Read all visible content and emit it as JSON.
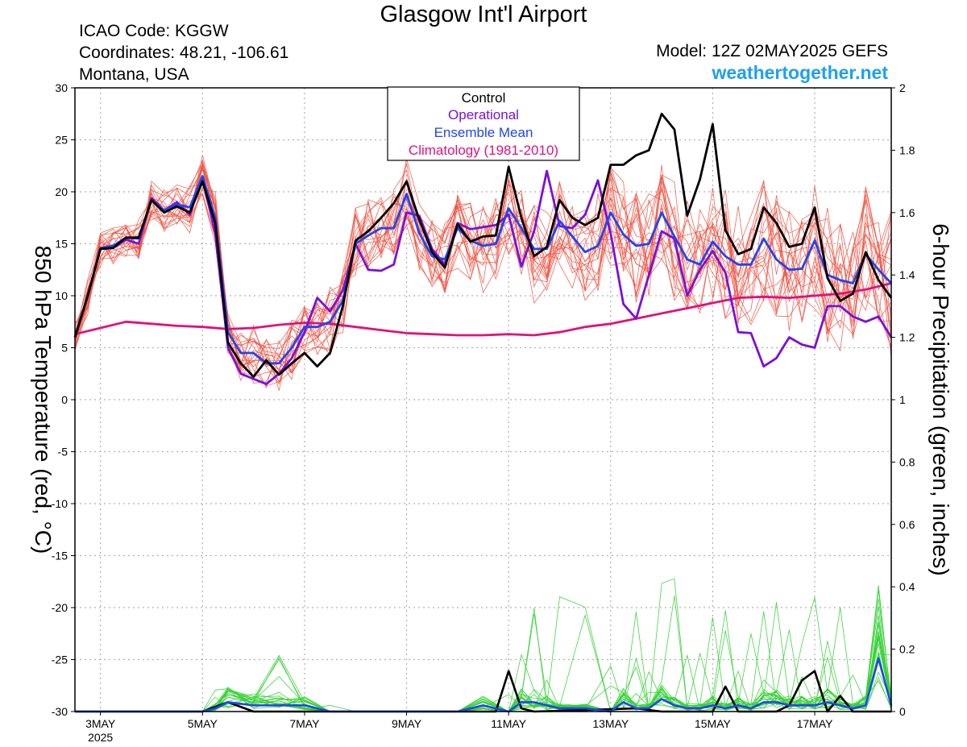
{
  "header": {
    "title": "Glasgow Int'l Airport",
    "icao": "ICAO Code: KGGW",
    "coords": "Coordinates: 48.21, -106.61",
    "location": "Montana, USA",
    "model": "Model: 12Z 02MAY2025 GEFS",
    "site": "weathertogether.net"
  },
  "colors": {
    "control": "#000000",
    "operational": "#7a10d8",
    "mean": "#2045f0",
    "climatology": "#e0127a",
    "members": "#f05040",
    "precip": "#30d030",
    "site": "#1ea0ee"
  },
  "chart_data": {
    "type": "line",
    "title": "Glasgow Int'l Airport",
    "ylabel": "850 hPa Temperature (red, °C)",
    "y2label": "6-hour Precipitation (green, inches)",
    "ylim": [
      -30,
      30
    ],
    "y2lim": [
      0,
      2
    ],
    "yticks": [
      -30,
      -25,
      -20,
      -15,
      -10,
      -5,
      0,
      5,
      10,
      15,
      20,
      25,
      30
    ],
    "y2ticks": [
      0,
      0.2,
      0.4,
      0.6,
      0.8,
      1,
      1.2,
      1.4,
      1.6,
      1.8,
      2
    ],
    "xticks": [
      {
        "day": 3,
        "label": "3MAY",
        "sub": "2025"
      },
      {
        "day": 5,
        "label": "5MAY"
      },
      {
        "day": 7,
        "label": "7MAY"
      },
      {
        "day": 9,
        "label": "9MAY"
      },
      {
        "day": 11,
        "label": "11MAY"
      },
      {
        "day": 13,
        "label": "13MAY"
      },
      {
        "day": 15,
        "label": "15MAY"
      },
      {
        "day": 17,
        "label": "17MAY"
      }
    ],
    "xlim": [
      2.5,
      18.5
    ],
    "grid": true,
    "legend": {
      "position": "top-center",
      "entries": [
        {
          "label": "Control",
          "color": "#000000"
        },
        {
          "label": "Operational",
          "color": "#7a10d8"
        },
        {
          "label": "Ensemble Mean",
          "color": "#2045f0"
        },
        {
          "label": "Climatology (1981-2010)",
          "color": "#e0127a"
        }
      ]
    },
    "series": [
      {
        "name": "Control",
        "axis": "temperature",
        "x": [
          2.5,
          2.75,
          3.0,
          3.25,
          3.5,
          3.75,
          4.0,
          4.25,
          4.5,
          4.75,
          5.0,
          5.25,
          5.5,
          5.75,
          6.0,
          6.25,
          6.5,
          6.75,
          7.0,
          7.25,
          7.5,
          7.75,
          8.0,
          8.25,
          8.5,
          8.75,
          9.0,
          9.25,
          9.5,
          9.75,
          10.0,
          10.25,
          10.5,
          10.75,
          11.0,
          11.25,
          11.5,
          11.75,
          12.0,
          12.25,
          12.5,
          12.75,
          13.0,
          13.25,
          13.5,
          13.75,
          14.0,
          14.25,
          14.5,
          14.75,
          15.0,
          15.25,
          15.5,
          15.75,
          16.0,
          16.25,
          16.5,
          16.75,
          17.0,
          17.25,
          17.5,
          17.75,
          18.0,
          18.25,
          18.5
        ],
        "y": [
          6.0,
          10.0,
          14.5,
          14.6,
          15.6,
          15.6,
          19.2,
          18.0,
          18.6,
          18.0,
          21.0,
          17.0,
          5.5,
          3.5,
          2.2,
          3.8,
          2.4,
          3.5,
          4.5,
          3.2,
          4.5,
          9.0,
          15.3,
          16.2,
          17.5,
          18.9,
          21.0,
          17.3,
          14.2,
          12.7,
          16.9,
          15.2,
          15.7,
          15.8,
          22.4,
          17.5,
          13.8,
          14.7,
          19.2,
          17.5,
          16.8,
          17.5,
          22.6,
          22.6,
          23.5,
          24.0,
          27.5,
          26.0,
          17.7,
          21.2,
          26.5,
          16.3,
          14.0,
          14.5,
          18.5,
          17.0,
          14.7,
          15.0,
          18.5,
          11.7,
          9.5,
          10.2,
          14.2,
          11.5,
          9.8
        ]
      },
      {
        "name": "Operational",
        "axis": "temperature",
        "x": [
          2.5,
          2.75,
          3.0,
          3.25,
          3.5,
          3.75,
          4.0,
          4.25,
          4.5,
          4.75,
          5.0,
          5.25,
          5.5,
          5.75,
          6.0,
          6.25,
          6.5,
          6.75,
          7.0,
          7.25,
          7.5,
          7.75,
          8.0,
          8.25,
          8.5,
          8.75,
          9.0,
          9.25,
          9.5,
          9.75,
          10.0,
          10.25,
          10.5,
          10.75,
          11.0,
          11.25,
          11.5,
          11.75,
          12.0,
          12.25,
          12.5,
          12.75,
          13.0,
          13.25,
          13.5,
          13.75,
          14.0,
          14.25,
          14.5,
          14.75,
          15.0,
          15.25,
          15.5,
          15.75,
          16.0,
          16.25,
          16.5,
          16.75,
          17.0,
          17.25,
          17.5,
          17.75,
          18.0,
          18.25,
          18.5
        ],
        "y": [
          6.0,
          10.0,
          14.5,
          14.6,
          15.4,
          15.0,
          19.4,
          18.2,
          19.0,
          17.8,
          21.3,
          16.0,
          5.0,
          2.5,
          2.0,
          1.5,
          2.5,
          4.0,
          6.5,
          9.8,
          8.5,
          10.5,
          15.0,
          12.5,
          12.4,
          13.0,
          18.0,
          17.7,
          14.5,
          13.0,
          17.0,
          16.4,
          16.6,
          16.8,
          17.8,
          12.8,
          16.2,
          22.0,
          16.7,
          16.5,
          17.8,
          21.1,
          16.0,
          9.2,
          7.8,
          12.0,
          16.2,
          15.5,
          10.0,
          12.5,
          14.3,
          12.2,
          6.5,
          6.4,
          3.2,
          4.0,
          6.0,
          5.3,
          5.0,
          9.0,
          9.0,
          8.0,
          7.5,
          8.0,
          6.0
        ]
      },
      {
        "name": "Ensemble Mean",
        "axis": "temperature",
        "x": [
          2.5,
          2.75,
          3.0,
          3.25,
          3.5,
          3.75,
          4.0,
          4.25,
          4.5,
          4.75,
          5.0,
          5.25,
          5.5,
          5.75,
          6.0,
          6.25,
          6.5,
          6.75,
          7.0,
          7.25,
          7.5,
          7.75,
          8.0,
          8.25,
          8.5,
          8.75,
          9.0,
          9.25,
          9.5,
          9.75,
          10.0,
          10.25,
          10.5,
          10.75,
          11.0,
          11.25,
          11.5,
          11.75,
          12.0,
          12.25,
          12.5,
          12.75,
          13.0,
          13.25,
          13.5,
          13.75,
          14.0,
          14.25,
          14.5,
          14.75,
          15.0,
          15.25,
          15.5,
          15.75,
          16.0,
          16.25,
          16.5,
          16.75,
          17.0,
          17.25,
          17.5,
          17.75,
          18.0,
          18.25,
          18.5
        ],
        "y": [
          6.0,
          10.0,
          14.6,
          14.8,
          15.6,
          15.5,
          19.2,
          18.2,
          18.8,
          18.5,
          21.5,
          17.5,
          6.5,
          4.5,
          4.5,
          3.5,
          3.5,
          5.0,
          7.0,
          7.0,
          7.5,
          9.5,
          15.0,
          15.8,
          16.5,
          16.5,
          19.8,
          16.0,
          13.8,
          13.5,
          16.5,
          15.3,
          14.8,
          15.0,
          18.4,
          16.5,
          14.5,
          14.5,
          17.2,
          15.7,
          14.2,
          14.8,
          18.0,
          15.9,
          14.8,
          15.0,
          18.0,
          15.7,
          13.5,
          13.0,
          15.2,
          13.8,
          13.0,
          13.0,
          15.5,
          13.5,
          12.5,
          12.6,
          15.3,
          12.0,
          11.5,
          11.2,
          14.0,
          12.5,
          11.2
        ]
      },
      {
        "name": "Climatology (1981-2010)",
        "axis": "temperature",
        "x": [
          2.5,
          3.0,
          3.5,
          4.0,
          4.5,
          5.0,
          5.5,
          6.0,
          6.5,
          7.0,
          7.5,
          8.0,
          8.5,
          9.0,
          9.5,
          10.0,
          10.5,
          11.0,
          11.5,
          12.0,
          12.5,
          13.0,
          13.5,
          14.0,
          14.5,
          15.0,
          15.5,
          16.0,
          16.5,
          17.0,
          17.5,
          18.0,
          18.5
        ],
        "y": [
          6.3,
          6.9,
          7.5,
          7.3,
          7.1,
          7.0,
          6.8,
          6.9,
          7.2,
          7.4,
          7.3,
          7.0,
          6.7,
          6.4,
          6.3,
          6.2,
          6.2,
          6.3,
          6.2,
          6.5,
          7.0,
          7.3,
          7.8,
          8.3,
          8.8,
          9.3,
          9.8,
          9.9,
          9.8,
          10.0,
          10.2,
          10.6,
          11.2
        ]
      },
      {
        "name": "Control precip",
        "axis": "precip",
        "x": [
          2.5,
          5.0,
          5.5,
          6.0,
          6.5,
          7.0,
          7.5,
          8.0,
          10.75,
          11.0,
          11.25,
          11.5,
          13.5,
          14.0,
          15.0,
          15.25,
          15.5,
          16.0,
          16.25,
          16.5,
          16.75,
          17.0,
          17.25,
          17.5,
          17.75,
          18.0,
          18.5
        ],
        "y": [
          0,
          0,
          0.03,
          0.0,
          0.0,
          0.0,
          0.0,
          0,
          0,
          0.13,
          0.01,
          0,
          0.01,
          0,
          0,
          0.08,
          0,
          0,
          0.0,
          0.02,
          0.1,
          0.13,
          0.0,
          0.05,
          0,
          0,
          0
        ]
      },
      {
        "name": "Mean precip",
        "axis": "precip",
        "x": [
          2.5,
          5.0,
          5.25,
          5.5,
          6.0,
          6.5,
          7.0,
          7.5,
          8.0,
          9.0,
          10.0,
          10.5,
          11.0,
          11.25,
          11.5,
          11.75,
          12.0,
          12.5,
          13.0,
          13.25,
          13.5,
          13.75,
          14.0,
          14.25,
          14.5,
          14.75,
          15.0,
          15.25,
          15.5,
          15.75,
          16.0,
          16.25,
          16.5,
          16.75,
          17.0,
          17.25,
          17.5,
          17.75,
          18.0,
          18.25,
          18.5
        ],
        "y": [
          0,
          0,
          0.01,
          0.03,
          0.02,
          0.02,
          0.02,
          0.0,
          0.0,
          0.0,
          0.0,
          0.02,
          0.0,
          0.03,
          0.03,
          0.02,
          0.01,
          0.01,
          0.0,
          0.03,
          0.01,
          0.01,
          0.04,
          0.02,
          0.01,
          0.01,
          0.02,
          0.01,
          0.02,
          0.01,
          0.03,
          0.03,
          0.02,
          0.02,
          0.02,
          0.03,
          0.02,
          0.01,
          0.02,
          0.17,
          0.02
        ]
      }
    ]
  }
}
